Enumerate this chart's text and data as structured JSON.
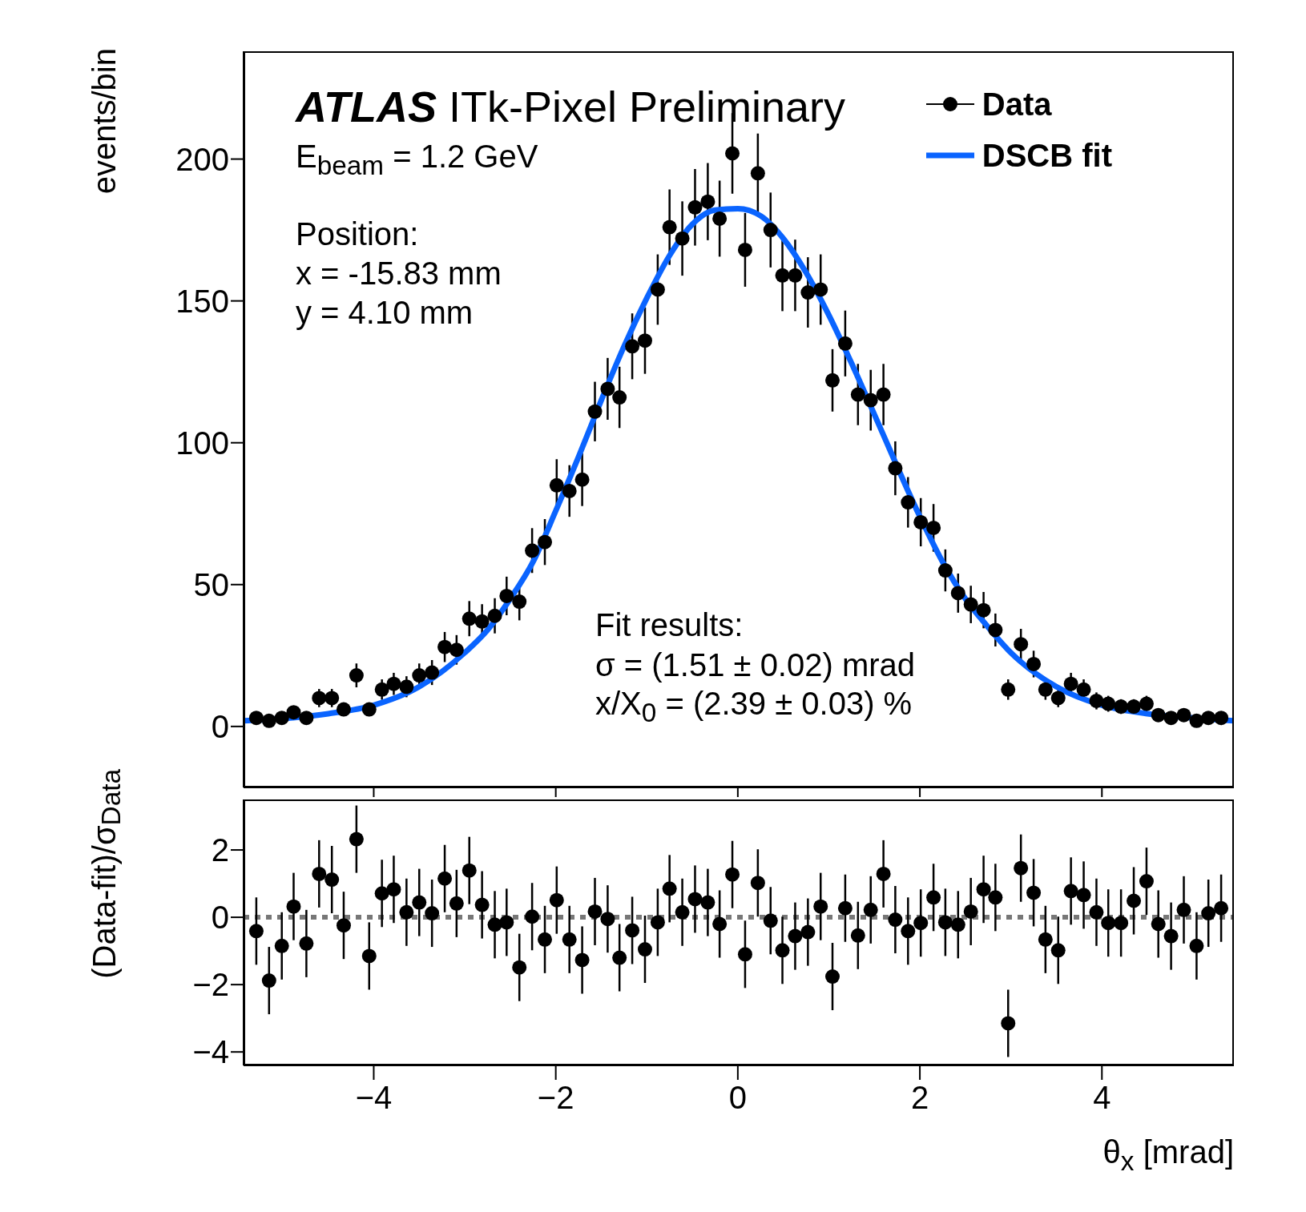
{
  "chart_data": [
    {
      "type": "scatter",
      "ylabel": "events/bin",
      "legend": "top right",
      "tick_labels": "y",
      "annotations": [
        "ATLAS",
        "ITk-Pixel Preliminary",
        "E$_{beam}$ = 1.2 GeV",
        "Position:",
        "x = -15.83 mm",
        "y = 4.10 mm",
        "Fit results:",
        "σ = (1.51 ± 0.02) mrad",
        "x/X$_{0}$ = (2.39 ± 0.03) %"
      ],
      "xlim": [
        -5.43,
        5.45
      ],
      "xticks": [
        {
          "value": -4,
          "label": null
        },
        {
          "value": -2,
          "label": null
        },
        {
          "value": 0,
          "label": null
        },
        {
          "value": 2,
          "label": null
        },
        {
          "value": 4,
          "label": null
        }
      ],
      "ylim": [
        -21.5,
        238
      ],
      "yticks": [
        0,
        50,
        100,
        150,
        200
      ],
      "x": [
        -5.29,
        -5.15,
        -5.01,
        -4.88,
        -4.74,
        -4.6,
        -4.46,
        -4.33,
        -4.19,
        -4.05,
        -3.91,
        -3.78,
        -3.64,
        -3.5,
        -3.36,
        -3.22,
        -3.09,
        -2.95,
        -2.81,
        -2.67,
        -2.54,
        -2.4,
        -2.26,
        -2.12,
        -1.99,
        -1.85,
        -1.71,
        -1.57,
        -1.43,
        -1.3,
        -1.16,
        -1.02,
        -0.88,
        -0.75,
        -0.61,
        -0.47,
        -0.33,
        -0.2,
        -0.06,
        0.08,
        0.22,
        0.36,
        0.49,
        0.63,
        0.77,
        0.91,
        1.04,
        1.18,
        1.32,
        1.46,
        1.6,
        1.73,
        1.87,
        2.01,
        2.15,
        2.28,
        2.42,
        2.56,
        2.7,
        2.83,
        2.97,
        3.11,
        3.25,
        3.38,
        3.52,
        3.66,
        3.8,
        3.94,
        4.07,
        4.21,
        4.35,
        4.49,
        4.62,
        4.76,
        4.9,
        5.04,
        5.17,
        5.31
      ],
      "series": [
        {
          "name": "Data",
          "type": "scatter",
          "marker": "circle",
          "color": "#000000",
          "values": [
            3,
            2,
            3,
            5,
            3,
            10,
            10,
            6,
            18,
            6,
            13,
            15,
            14,
            18,
            19,
            28,
            27,
            38,
            37,
            39,
            46,
            44,
            62,
            65,
            85,
            83,
            87,
            111,
            119,
            116,
            134,
            136,
            154,
            176,
            172,
            183,
            185,
            179,
            202,
            168,
            195,
            175,
            159,
            159,
            153,
            154,
            122,
            135,
            117,
            115,
            117,
            91,
            79,
            72,
            70,
            55,
            47,
            43,
            41,
            34,
            13,
            29,
            22,
            13,
            10,
            15,
            13,
            9,
            8,
            7,
            7,
            8,
            4,
            3,
            4,
            2,
            3,
            3
          ],
          "errors": [
            1.7,
            1.4,
            1.7,
            2.2,
            1.7,
            3.2,
            3.2,
            2.4,
            4.2,
            2.4,
            3.6,
            3.9,
            3.7,
            4.2,
            4.4,
            5.3,
            5.2,
            6.2,
            6.1,
            6.2,
            6.8,
            6.6,
            7.9,
            8.1,
            9.2,
            9.1,
            9.3,
            10.5,
            10.9,
            10.8,
            11.6,
            11.7,
            12.4,
            13.3,
            13.1,
            13.5,
            13.6,
            13.4,
            14.2,
            13,
            14,
            13.2,
            12.6,
            12.6,
            12.4,
            12.4,
            11,
            11.6,
            10.8,
            10.7,
            10.8,
            9.5,
            8.9,
            8.5,
            8.4,
            7.4,
            6.9,
            6.6,
            6.4,
            5.8,
            3.6,
            5.4,
            4.7,
            3.6,
            3.2,
            3.9,
            3.6,
            3,
            2.8,
            2.6,
            2.6,
            2.8,
            2,
            1.7,
            2,
            1.4,
            1.7,
            1.7
          ]
        },
        {
          "name": "DSCB fit",
          "type": "line",
          "color": "#0a64ff",
          "x": [
            -5.43,
            -4.5,
            -4,
            -3.5,
            -3,
            -2.75,
            -2.5,
            -2.25,
            -2,
            -1.75,
            -1.5,
            -1.25,
            -1,
            -0.75,
            -0.5,
            -0.25,
            0,
            0.25,
            0.5,
            0.75,
            1,
            1.25,
            1.5,
            2,
            2.25,
            2.5,
            2.75,
            3,
            3.5,
            4,
            4.5,
            5,
            5.45
          ],
          "values": [
            2,
            4.5,
            7.5,
            14,
            26,
            34,
            45,
            58,
            76,
            95,
            115,
            134,
            151,
            166,
            177,
            182,
            182.5,
            180,
            172,
            160,
            145,
            128,
            110,
            74,
            58,
            45,
            35,
            26,
            14,
            7.5,
            4.5,
            3,
            2
          ]
        }
      ]
    },
    {
      "type": "scatter",
      "xlabel": "θ$_{x}$ [mrad]",
      "ylabel": "(Data-fit)/σ$_{Data}$",
      "marker": "circle",
      "color": "#000000",
      "xlim": [
        -5.43,
        5.45
      ],
      "xticks": [
        -4,
        -2,
        0,
        2,
        4
      ],
      "ylim": [
        -4.4,
        3.5
      ],
      "yticks": [
        -4,
        -2,
        0,
        2
      ],
      "ref_lines": [
        {
          "axis": "y",
          "value": 0,
          "label": null,
          "color": "#777777",
          "line_style": "dotted"
        }
      ],
      "x": [
        -5.29,
        -5.15,
        -5.01,
        -4.88,
        -4.74,
        -4.6,
        -4.46,
        -4.33,
        -4.19,
        -4.05,
        -3.91,
        -3.78,
        -3.64,
        -3.5,
        -3.36,
        -3.22,
        -3.09,
        -2.95,
        -2.81,
        -2.67,
        -2.54,
        -2.4,
        -2.26,
        -2.12,
        -1.99,
        -1.85,
        -1.71,
        -1.57,
        -1.43,
        -1.3,
        -1.16,
        -1.02,
        -0.88,
        -0.75,
        -0.61,
        -0.47,
        -0.33,
        -0.2,
        -0.06,
        0.08,
        0.22,
        0.36,
        0.49,
        0.63,
        0.77,
        0.91,
        1.04,
        1.18,
        1.32,
        1.46,
        1.6,
        1.73,
        1.87,
        2.01,
        2.15,
        2.28,
        2.42,
        2.56,
        2.7,
        2.83,
        2.97,
        3.11,
        3.25,
        3.38,
        3.52,
        3.66,
        3.8,
        3.94,
        4.07,
        4.21,
        4.35,
        4.49,
        4.62,
        4.76,
        4.9,
        5.04,
        5.17,
        5.31
      ],
      "values": [
        -0.41,
        -1.88,
        -0.85,
        0.32,
        -0.78,
        1.29,
        1.12,
        -0.24,
        2.32,
        -1.15,
        0.71,
        0.83,
        0.15,
        0.44,
        0.12,
        1.15,
        0.41,
        1.39,
        0.37,
        -0.22,
        -0.15,
        -1.49,
        0.02,
        -0.66,
        0.51,
        -0.66,
        -1.27,
        0.17,
        -0.05,
        -1.2,
        -0.39,
        -0.95,
        -0.15,
        0.85,
        0.15,
        0.54,
        0.44,
        -0.2,
        1.27,
        -1.1,
        1.02,
        -0.1,
        -0.98,
        -0.56,
        -0.44,
        0.32,
        -1.76,
        0.27,
        -0.54,
        0.22,
        1.29,
        -0.07,
        -0.41,
        -0.17,
        0.59,
        -0.15,
        -0.22,
        0.17,
        0.83,
        0.59,
        -3.15,
        1.46,
        0.73,
        -0.66,
        -0.98,
        0.78,
        0.66,
        0.15,
        -0.17,
        -0.17,
        0.49,
        1.07,
        -0.2,
        -0.56,
        0.22,
        -0.85,
        0.12,
        0.27
      ],
      "errors": [
        1,
        1,
        1,
        1,
        1,
        1,
        1,
        1,
        1,
        1,
        1,
        1,
        1,
        1,
        1,
        1,
        1,
        1,
        1,
        1,
        1,
        1,
        1,
        1,
        1,
        1,
        1,
        1,
        1,
        1,
        1,
        1,
        1,
        1,
        1,
        1,
        1,
        1,
        1,
        1,
        1,
        1,
        1,
        1,
        1,
        1,
        1,
        1,
        1,
        1,
        1,
        1,
        1,
        1,
        1,
        1,
        1,
        1,
        1,
        1,
        1,
        1,
        1,
        1,
        1,
        1,
        1,
        1,
        1,
        1,
        1,
        1,
        1,
        1,
        1,
        1,
        1,
        1
      ]
    }
  ]
}
